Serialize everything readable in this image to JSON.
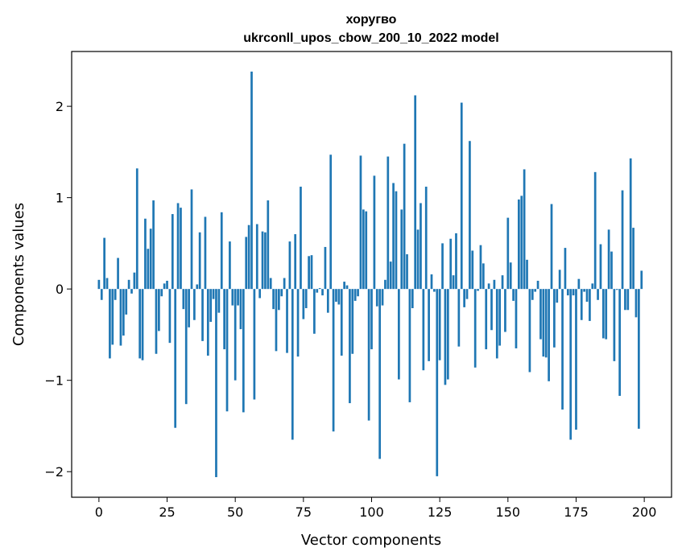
{
  "chart_data": {
    "type": "bar",
    "title": "хоругво",
    "subtitle": "ukrconll_upos_cbow_200_10_2022 model",
    "xlabel": "Vector components",
    "ylabel": "Components values",
    "xlim": [
      -10,
      210
    ],
    "ylim": [
      -2.28,
      2.6
    ],
    "xticks": [
      0,
      25,
      50,
      75,
      100,
      125,
      150,
      175,
      200
    ],
    "xtick_labels": [
      "0",
      "25",
      "50",
      "75",
      "100",
      "125",
      "150",
      "175",
      "200"
    ],
    "yticks": [
      -2,
      -1,
      0,
      1,
      2
    ],
    "ytick_labels": [
      "−2",
      "−1",
      "0",
      "1",
      "2"
    ],
    "grid": false,
    "bar_color": "#1f77b4",
    "x": [
      0,
      1,
      2,
      3,
      4,
      5,
      6,
      7,
      8,
      9,
      10,
      11,
      12,
      13,
      14,
      15,
      16,
      17,
      18,
      19,
      20,
      21,
      22,
      23,
      24,
      25,
      26,
      27,
      28,
      29,
      30,
      31,
      32,
      33,
      34,
      35,
      36,
      37,
      38,
      39,
      40,
      41,
      42,
      43,
      44,
      45,
      46,
      47,
      48,
      49,
      50,
      51,
      52,
      53,
      54,
      55,
      56,
      57,
      58,
      59,
      60,
      61,
      62,
      63,
      64,
      65,
      66,
      67,
      68,
      69,
      70,
      71,
      72,
      73,
      74,
      75,
      76,
      77,
      78,
      79,
      80,
      81,
      82,
      83,
      84,
      85,
      86,
      87,
      88,
      89,
      90,
      91,
      92,
      93,
      94,
      95,
      96,
      97,
      98,
      99,
      100,
      101,
      102,
      103,
      104,
      105,
      106,
      107,
      108,
      109,
      110,
      111,
      112,
      113,
      114,
      115,
      116,
      117,
      118,
      119,
      120,
      121,
      122,
      123,
      124,
      125,
      126,
      127,
      128,
      129,
      130,
      131,
      132,
      133,
      134,
      135,
      136,
      137,
      138,
      139,
      140,
      141,
      142,
      143,
      144,
      145,
      146,
      147,
      148,
      149,
      150,
      151,
      152,
      153,
      154,
      155,
      156,
      157,
      158,
      159,
      160,
      161,
      162,
      163,
      164,
      165,
      166,
      167,
      168,
      169,
      170,
      171,
      172,
      173,
      174,
      175,
      176,
      177,
      178,
      179,
      180,
      181,
      182,
      183,
      184,
      185,
      186,
      187,
      188,
      189,
      190,
      191,
      192,
      193,
      194,
      195,
      196,
      197,
      198,
      199
    ],
    "values": [
      0.1,
      -0.12,
      0.56,
      0.12,
      -0.76,
      -0.61,
      -0.12,
      0.34,
      -0.62,
      -0.51,
      -0.28,
      0.1,
      -0.05,
      0.18,
      1.32,
      -0.76,
      -0.78,
      0.77,
      0.44,
      0.66,
      0.97,
      -0.71,
      -0.46,
      -0.08,
      0.06,
      0.09,
      -0.59,
      0.82,
      -1.52,
      0.94,
      0.89,
      -0.22,
      -1.26,
      -0.42,
      1.09,
      -0.34,
      0.05,
      0.62,
      -0.57,
      0.79,
      -0.73,
      -0.36,
      -0.11,
      -2.06,
      -0.26,
      0.84,
      -0.66,
      -1.34,
      0.52,
      -0.18,
      -1.0,
      -0.18,
      -0.44,
      -1.35,
      0.57,
      0.7,
      2.38,
      -1.21,
      0.71,
      -0.1,
      0.63,
      0.62,
      0.97,
      0.12,
      -0.22,
      -0.68,
      -0.23,
      -0.08,
      0.12,
      -0.7,
      0.52,
      -1.65,
      0.6,
      -0.74,
      1.12,
      -0.33,
      -0.21,
      0.36,
      0.37,
      -0.49,
      -0.04,
      0.01,
      -0.07,
      0.46,
      -0.26,
      1.47,
      -1.56,
      -0.14,
      -0.17,
      -0.73,
      0.08,
      0.04,
      -1.25,
      -0.71,
      -0.13,
      -0.08,
      1.46,
      0.87,
      0.85,
      -1.44,
      -0.66,
      1.24,
      -0.19,
      -1.86,
      -0.18,
      0.1,
      1.45,
      0.3,
      1.16,
      1.07,
      -0.99,
      0.87,
      1.59,
      0.38,
      -1.24,
      -0.21,
      2.12,
      0.65,
      0.94,
      -0.89,
      1.12,
      -0.79,
      0.16,
      -0.03,
      -2.05,
      -0.78,
      0.5,
      -1.05,
      -0.99,
      0.55,
      0.15,
      0.61,
      -0.63,
      2.04,
      -0.2,
      -0.11,
      1.62,
      0.42,
      -0.86,
      -0.02,
      0.48,
      0.28,
      -0.66,
      0.06,
      -0.45,
      0.1,
      -0.76,
      -0.62,
      0.15,
      -0.47,
      0.78,
      0.29,
      -0.13,
      -0.65,
      0.98,
      1.02,
      1.31,
      0.32,
      -0.91,
      -0.12,
      -0.03,
      0.09,
      -0.55,
      -0.74,
      -0.75,
      -1.01,
      0.93,
      -0.64,
      -0.15,
      0.21,
      -1.32,
      0.45,
      -0.07,
      -1.65,
      -0.07,
      -1.54,
      0.11,
      -0.34,
      -0.03,
      -0.14,
      -0.35,
      0.06,
      1.28,
      -0.12,
      0.49,
      -0.54,
      -0.55,
      0.65,
      0.41,
      -0.79,
      -0.01,
      -1.17,
      1.08,
      -0.23,
      -0.23,
      1.43,
      0.67,
      -0.31,
      -1.53,
      0.2
    ]
  }
}
